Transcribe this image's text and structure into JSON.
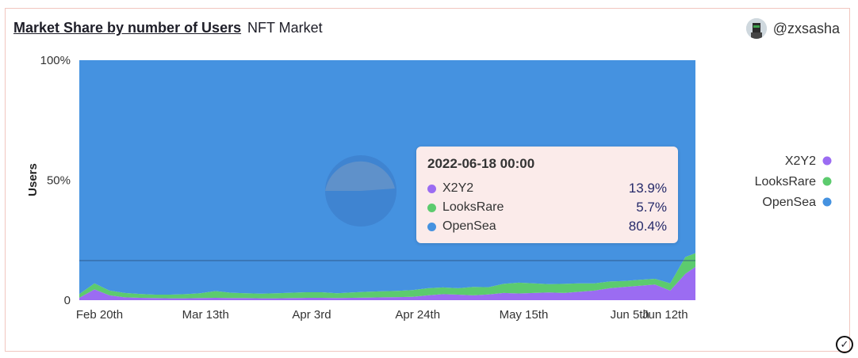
{
  "header": {
    "title": "Market Share by number of Users",
    "subtitle": "NFT Market",
    "username": "@zxsasha"
  },
  "tooltip": {
    "title": "2022-06-18 00:00",
    "rows": [
      {
        "name": "X2Y2",
        "value": "13.9%",
        "color": "#9b6cf2"
      },
      {
        "name": "LooksRare",
        "value": "5.7%",
        "color": "#5ccb6e"
      },
      {
        "name": "OpenSea",
        "value": "80.4%",
        "color": "#4592e0"
      }
    ]
  },
  "colors": {
    "x2y2": "#9b6cf2",
    "looksrare": "#5ccb6e",
    "opensea": "#4592e0"
  },
  "chart_data": {
    "type": "area",
    "stacked": true,
    "normalized": true,
    "title": "Market Share by number of Users",
    "subtitle": "NFT Market",
    "ylabel": "Users",
    "xlabel": "",
    "ylim": [
      0,
      100
    ],
    "y_ticks": [
      "100%",
      "50%",
      "0"
    ],
    "x_ticks": [
      "Feb 20th",
      "Mar 13th",
      "Apr 3rd",
      "Apr 24th",
      "May 15th",
      "Jun 5th",
      "Jun 12th"
    ],
    "x_tick_dates": [
      "2022-02-20",
      "2022-03-13",
      "2022-04-03",
      "2022-04-24",
      "2022-05-15",
      "2022-06-05",
      "2022-06-12"
    ],
    "legend_position": "right",
    "x": [
      "2022-02-16",
      "2022-02-19",
      "2022-02-22",
      "2022-02-25",
      "2022-02-28",
      "2022-03-03",
      "2022-03-06",
      "2022-03-09",
      "2022-03-12",
      "2022-03-15",
      "2022-03-18",
      "2022-03-21",
      "2022-03-24",
      "2022-03-27",
      "2022-03-30",
      "2022-04-02",
      "2022-04-05",
      "2022-04-08",
      "2022-04-11",
      "2022-04-14",
      "2022-04-17",
      "2022-04-20",
      "2022-04-23",
      "2022-04-26",
      "2022-04-29",
      "2022-05-02",
      "2022-05-05",
      "2022-05-08",
      "2022-05-11",
      "2022-05-14",
      "2022-05-17",
      "2022-05-20",
      "2022-05-23",
      "2022-05-26",
      "2022-05-29",
      "2022-06-01",
      "2022-06-04",
      "2022-06-07",
      "2022-06-10",
      "2022-06-13",
      "2022-06-16",
      "2022-06-18"
    ],
    "series": [
      {
        "name": "X2Y2",
        "values": [
          1.0,
          4.5,
          2.0,
          1.2,
          1.0,
          0.9,
          0.8,
          0.8,
          0.9,
          1.0,
          0.9,
          0.9,
          0.8,
          0.8,
          0.9,
          1.0,
          1.0,
          0.9,
          1.0,
          1.1,
          1.2,
          1.3,
          1.4,
          2.0,
          2.5,
          2.3,
          2.0,
          2.4,
          3.0,
          2.8,
          3.0,
          3.2,
          3.0,
          3.5,
          4.0,
          5.0,
          5.5,
          6.0,
          6.5,
          4.0,
          11.0,
          13.9
        ]
      },
      {
        "name": "LooksRare",
        "values": [
          1.5,
          2.5,
          2.0,
          1.8,
          1.6,
          1.4,
          1.5,
          1.7,
          2.0,
          2.8,
          2.2,
          2.0,
          1.9,
          2.1,
          2.2,
          2.3,
          2.3,
          2.0,
          2.2,
          2.4,
          2.5,
          2.6,
          2.8,
          3.0,
          2.8,
          2.7,
          3.5,
          3.0,
          3.8,
          4.5,
          4.0,
          3.5,
          3.8,
          3.5,
          3.0,
          2.8,
          2.5,
          2.5,
          2.4,
          3.0,
          7.0,
          5.7
        ]
      },
      {
        "name": "OpenSea",
        "values": [
          97.5,
          93.0,
          96.0,
          97.0,
          97.4,
          97.7,
          97.7,
          97.5,
          97.1,
          96.2,
          96.9,
          97.1,
          97.3,
          97.1,
          96.9,
          96.7,
          96.7,
          97.1,
          96.8,
          96.5,
          96.3,
          96.1,
          95.8,
          95.0,
          94.7,
          95.0,
          94.5,
          94.6,
          93.2,
          92.7,
          93.0,
          93.3,
          93.2,
          93.0,
          93.0,
          92.2,
          92.0,
          91.5,
          91.1,
          93.0,
          82.0,
          80.4
        ]
      }
    ]
  }
}
